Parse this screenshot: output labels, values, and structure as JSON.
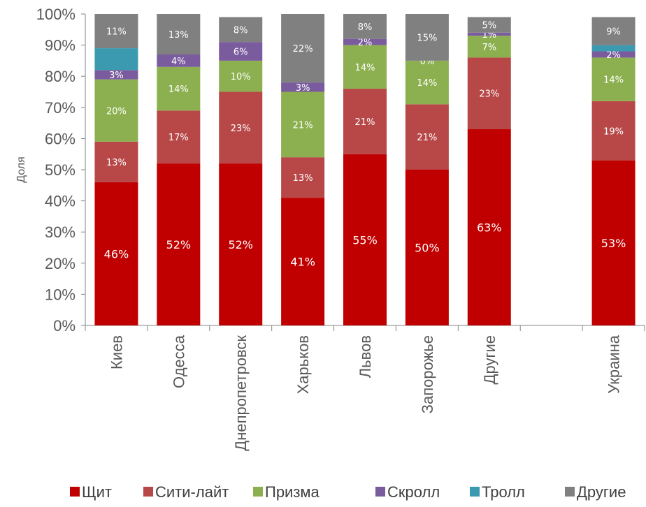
{
  "chart_data": {
    "type": "bar",
    "stacked": true,
    "ylabel": "Доля",
    "xlabel": "",
    "ylim": [
      0,
      100
    ],
    "y_ticks": [
      "0%",
      "10%",
      "20%",
      "30%",
      "40%",
      "50%",
      "60%",
      "70%",
      "80%",
      "90%",
      "100%"
    ],
    "categories": [
      "Киев",
      "Одесса",
      "Днепропетровск",
      "Харьков",
      "Львов",
      "Запорожье",
      "Другие",
      "",
      "Украина"
    ],
    "series": [
      {
        "name": "Щит",
        "color": "#C00000",
        "values": [
          46,
          52,
          52,
          41,
          55,
          50,
          63,
          null,
          53
        ],
        "labels": [
          "46%",
          "52%",
          "52%",
          "41%",
          "55%",
          "50%",
          "63%",
          "",
          "53%"
        ]
      },
      {
        "name": "Сити-лайт",
        "color": "#B84848",
        "values": [
          13,
          17,
          23,
          13,
          21,
          21,
          23,
          null,
          19
        ],
        "labels": [
          "13%",
          "17%",
          "23%",
          "13%",
          "21%",
          "21%",
          "23%",
          "",
          "19%"
        ]
      },
      {
        "name": "Призма",
        "color": "#8CB04F",
        "values": [
          20,
          14,
          10,
          21,
          14,
          14,
          7,
          null,
          14
        ],
        "labels": [
          "20%",
          "14%",
          "10%",
          "21%",
          "14%",
          "14%",
          "7%",
          "",
          "14%"
        ]
      },
      {
        "name": "Скролл",
        "color": "#7A5C9E",
        "values": [
          3,
          4,
          6,
          3,
          2,
          0,
          1,
          null,
          2
        ],
        "labels": [
          "3%",
          "4%",
          "6%",
          "3%",
          "2%",
          "0%",
          "1%",
          "",
          "2%"
        ]
      },
      {
        "name": "Тролл",
        "color": "#3C9AB0",
        "values": [
          7,
          0,
          0,
          0,
          0,
          0,
          0,
          null,
          2
        ],
        "labels": [
          "",
          "",
          "",
          "",
          "",
          "",
          "",
          "",
          ""
        ]
      },
      {
        "name": "Другие",
        "color": "#808080",
        "values": [
          11,
          13,
          8,
          22,
          8,
          15,
          5,
          null,
          9
        ],
        "labels": [
          "11%",
          "13%",
          "8%",
          "22%",
          "8%",
          "15%",
          "5%",
          "",
          "9%"
        ]
      }
    ],
    "legend_position": "bottom",
    "grid": false
  }
}
